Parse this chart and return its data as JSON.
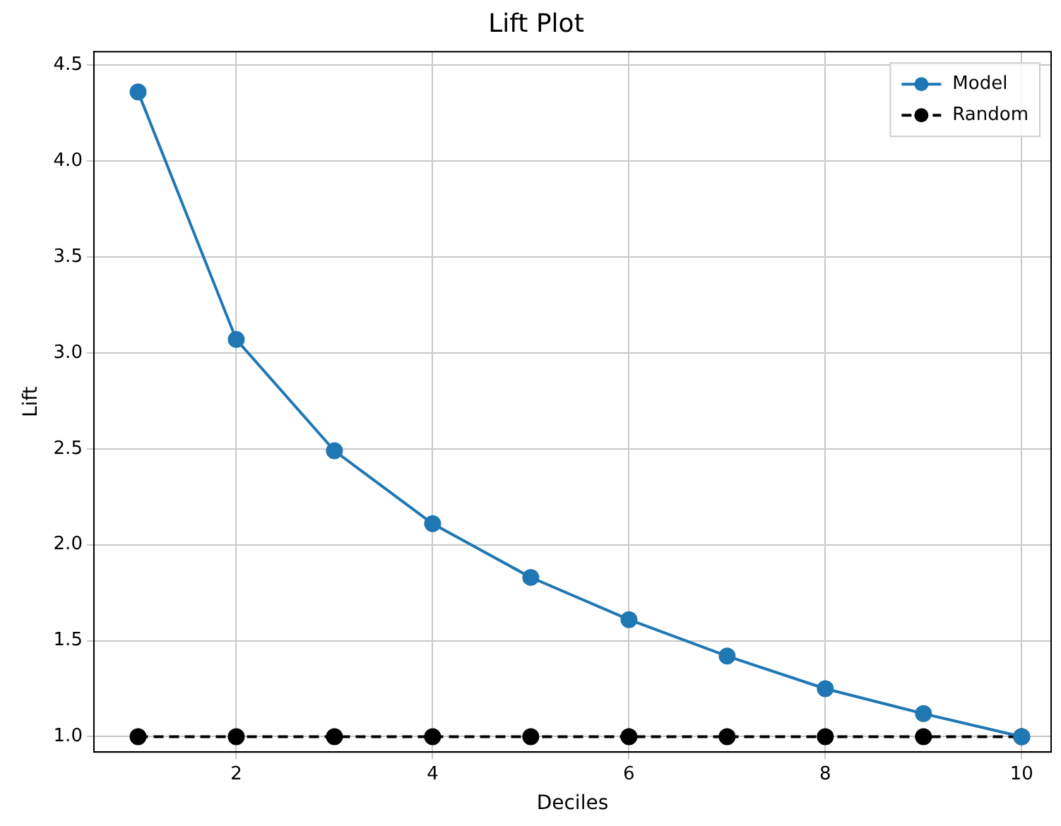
{
  "chart_data": {
    "type": "line",
    "title": "Lift Plot",
    "xlabel": "Deciles",
    "ylabel": "Lift",
    "x": [
      1,
      2,
      3,
      4,
      5,
      6,
      7,
      8,
      9,
      10
    ],
    "series": [
      {
        "name": "Model",
        "color": "#1f77b4",
        "marker": "circle",
        "line_style": "solid",
        "values": [
          4.36,
          3.07,
          2.49,
          2.11,
          1.83,
          1.61,
          1.42,
          1.25,
          1.12,
          1.0
        ]
      },
      {
        "name": "Random",
        "color": "#000000",
        "marker": "circle",
        "line_style": "dashed",
        "values": [
          1,
          1,
          1,
          1,
          1,
          1,
          1,
          1,
          1,
          1
        ]
      }
    ],
    "xlim": [
      0.55,
      10.3
    ],
    "xticks": [
      2,
      4,
      6,
      8,
      10
    ],
    "ylim": [
      0.92,
      4.57
    ],
    "yticks": [
      {
        "value": 1,
        "label": "1.0"
      },
      1.5,
      {
        "value": 2,
        "label": "2.0"
      },
      2.5,
      {
        "value": 3,
        "label": "3.0"
      },
      3.5,
      {
        "value": 4,
        "label": "4.0"
      },
      4.5
    ],
    "grid": true,
    "legend": "top right"
  }
}
